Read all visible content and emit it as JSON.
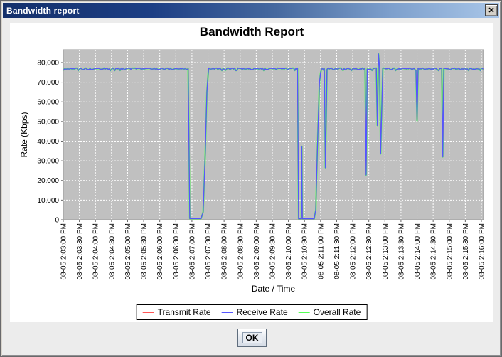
{
  "window": {
    "title": "Bandwidth report"
  },
  "icons": {
    "close": "✕"
  },
  "chart": {
    "title": "Bandwidth Report",
    "x_axis_title": "Date / Time",
    "y_axis_title": "Rate (Kbps)",
    "y_ticks": [
      {
        "value": 0,
        "label": "0"
      },
      {
        "value": 10000,
        "label": "10,000"
      },
      {
        "value": 20000,
        "label": "20,000"
      },
      {
        "value": 30000,
        "label": "30,000"
      },
      {
        "value": 40000,
        "label": "40,000"
      },
      {
        "value": 50000,
        "label": "50,000"
      },
      {
        "value": 60000,
        "label": "60,000"
      },
      {
        "value": 70000,
        "label": "70,000"
      },
      {
        "value": 80000,
        "label": "80,000"
      }
    ],
    "x_tick_labels": [
      "08-05 2:03:00 PM",
      "08-05 2:03:30 PM",
      "08-05 2:04:00 PM",
      "08-05 2:04:30 PM",
      "08-05 2:05:00 PM",
      "08-05 2:05:30 PM",
      "08-05 2:06:00 PM",
      "08-05 2:06:30 PM",
      "08-05 2:07:00 PM",
      "08-05 2:07:30 PM",
      "08-05 2:08:00 PM",
      "08-05 2:08:30 PM",
      "08-05 2:09:00 PM",
      "08-05 2:09:30 PM",
      "08-05 2:10:00 PM",
      "08-05 2:10:30 PM",
      "08-05 2:11:00 PM",
      "08-05 2:11:30 PM",
      "08-05 2:12:00 PM",
      "08-05 2:12:30 PM",
      "08-05 2:13:00 PM",
      "08-05 2:13:30 PM",
      "08-05 2:14:00 PM",
      "08-05 2:14:30 PM",
      "08-05 2:15:00 PM",
      "08-05 2:15:30 PM",
      "08-05 2:16:00 PM"
    ],
    "legend": [
      {
        "label": "Transmit Rate",
        "color": "#FF5555"
      },
      {
        "label": "Receive Rate",
        "color": "#5555FF"
      },
      {
        "label": "Overall Rate",
        "color": "#55FF55"
      }
    ],
    "colors": {
      "plot_background": "#C0C0C0",
      "gridline": "#FFFFFF",
      "plot_border": "#9A9A9A",
      "tick_mark": "#666666",
      "titlebar_dark": "#14306B",
      "titlebar_light": "#A9C6E8"
    }
  },
  "chart_data": {
    "type": "line",
    "title": "Bandwidth Report",
    "xlabel": "Date / Time",
    "ylabel": "Rate (Kbps)",
    "x_unit": "seconds after 08-05 2:03:00 PM",
    "x_seconds_range": [
      0,
      784
    ],
    "x_tick_step_seconds": 30,
    "ylim": [
      0,
      86500
    ],
    "grid": true,
    "legend_position": "bottom",
    "note": "All three series overlap almost exactly; the blue Receive Rate line is drawn on top. Plateau ~76,800 Kbps with small jitter; outages drop to ~0.",
    "shared_keypoints": [
      [
        0,
        76800
      ],
      [
        233,
        76800
      ],
      [
        236,
        600
      ],
      [
        257,
        600
      ],
      [
        261,
        4000
      ],
      [
        265,
        35000
      ],
      [
        268,
        65000
      ],
      [
        271,
        76800
      ],
      [
        437,
        76800
      ],
      [
        439,
        500
      ],
      [
        444,
        500
      ],
      [
        445,
        37300
      ],
      [
        446,
        500
      ],
      [
        468,
        500
      ],
      [
        471,
        5000
      ],
      [
        475,
        45000
      ],
      [
        478,
        70000
      ],
      [
        481,
        76800
      ],
      [
        487,
        76800
      ],
      [
        489,
        26500
      ],
      [
        492,
        76800
      ],
      [
        563,
        76800
      ],
      [
        565,
        22800
      ],
      [
        567,
        76800
      ],
      [
        584,
        76800
      ],
      [
        586,
        48000
      ],
      [
        588,
        84400
      ],
      [
        590,
        76800
      ],
      [
        592,
        33500
      ],
      [
        596,
        76800
      ],
      [
        658,
        76800
      ],
      [
        660,
        50500
      ],
      [
        662,
        76800
      ],
      [
        706,
        76800
      ],
      [
        708,
        32000
      ],
      [
        710,
        76800
      ],
      [
        784,
        76800
      ]
    ],
    "noise": {
      "apply_above": 73500,
      "amplitude": 480,
      "deep_tick_extra": 1300,
      "up_tick_extra": 700,
      "seed": 13,
      "sample_step_seconds": 2
    },
    "series": [
      {
        "name": "Overall Rate",
        "color": "#55FF55",
        "stroke_width": 2.2,
        "z": 1,
        "keypoints": "shared"
      },
      {
        "name": "Transmit Rate",
        "color": "#FF5555",
        "stroke_width": 1.1,
        "z": 2,
        "keypoints": "shared"
      },
      {
        "name": "Receive Rate",
        "color": "#5555FF",
        "stroke_width": 1.3,
        "z": 3,
        "keypoints": "shared"
      }
    ]
  },
  "dialog": {
    "ok_label": "OK"
  }
}
